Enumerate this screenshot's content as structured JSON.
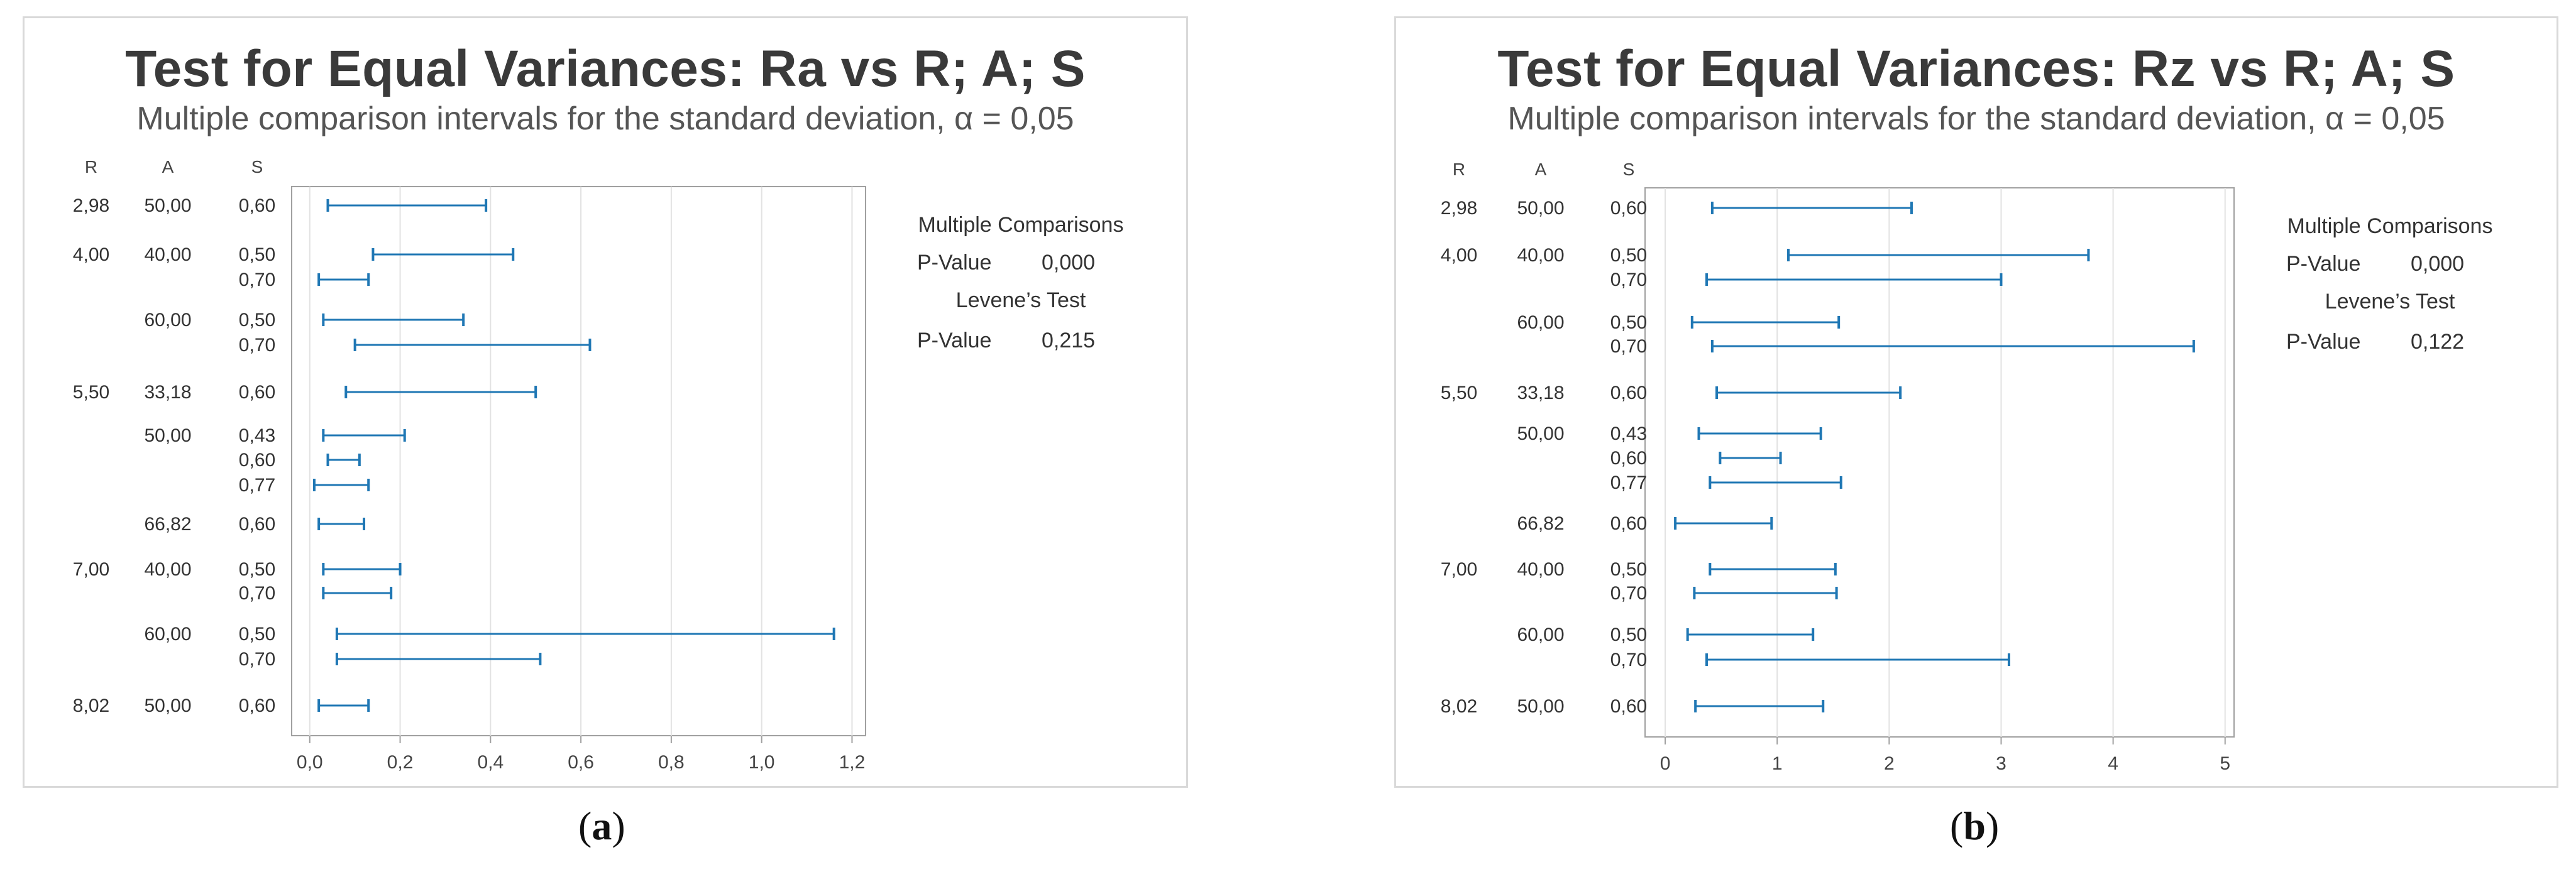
{
  "panels": [
    {
      "title": "Test for Equal Variances: Ra vs R; A; S",
      "subtitle": "Multiple comparison intervals for the standard deviation, α = 0,05",
      "caption_letter": "a",
      "stats": {
        "multiple_comparisons_heading": "Multiple Comparisons",
        "mc_pvalue_label": "P-Value",
        "mc_pvalue": "0,000",
        "levene_heading": "Levene’s Test",
        "lev_pvalue_label": "P-Value",
        "lev_pvalue": "0,215"
      }
    },
    {
      "title": "Test for Equal Variances: Rz vs R; A; S",
      "subtitle": "Multiple comparison intervals for the standard deviation, α = 0,05",
      "caption_letter": "b",
      "stats": {
        "multiple_comparisons_heading": "Multiple Comparisons",
        "mc_pvalue_label": "P-Value",
        "mc_pvalue": "0,000",
        "levene_heading": "Levene’s Test",
        "lev_pvalue_label": "P-Value",
        "lev_pvalue": "0,122"
      }
    }
  ],
  "chart_data": [
    {
      "type": "interval",
      "title": "Test for Equal Variances: Ra vs R; A; S",
      "subtitle": "Multiple comparison intervals for the standard deviation, α = 0,05",
      "column_headers": [
        "R",
        "A",
        "S"
      ],
      "rows": [
        {
          "R": "2,98",
          "A": "50,00",
          "S": "0,60",
          "low": 0.04,
          "high": 0.39
        },
        {
          "R": "4,00",
          "A": "40,00",
          "S": "0,50",
          "low": 0.14,
          "high": 0.45
        },
        {
          "R": "",
          "A": "",
          "S": "0,70",
          "low": 0.02,
          "high": 0.13
        },
        {
          "R": "",
          "A": "60,00",
          "S": "0,50",
          "low": 0.03,
          "high": 0.34
        },
        {
          "R": "",
          "A": "",
          "S": "0,70",
          "low": 0.1,
          "high": 0.62
        },
        {
          "R": "5,50",
          "A": "33,18",
          "S": "0,60",
          "low": 0.08,
          "high": 0.5
        },
        {
          "R": "",
          "A": "50,00",
          "S": "0,43",
          "low": 0.03,
          "high": 0.21
        },
        {
          "R": "",
          "A": "",
          "S": "0,60",
          "low": 0.04,
          "high": 0.11
        },
        {
          "R": "",
          "A": "",
          "S": "0,77",
          "low": 0.01,
          "high": 0.13
        },
        {
          "R": "",
          "A": "66,82",
          "S": "0,60",
          "low": 0.02,
          "high": 0.12
        },
        {
          "R": "7,00",
          "A": "40,00",
          "S": "0,50",
          "low": 0.03,
          "high": 0.2
        },
        {
          "R": "",
          "A": "",
          "S": "0,70",
          "low": 0.03,
          "high": 0.18
        },
        {
          "R": "",
          "A": "60,00",
          "S": "0,50",
          "low": 0.06,
          "high": 1.16
        },
        {
          "R": "",
          "A": "",
          "S": "0,70",
          "low": 0.06,
          "high": 0.51
        },
        {
          "R": "8,02",
          "A": "50,00",
          "S": "0,60",
          "low": 0.02,
          "high": 0.13
        }
      ],
      "x_ticks": [
        "0,0",
        "0,2",
        "0,4",
        "0,6",
        "0,8",
        "1,0",
        "1,2"
      ],
      "x_tick_values": [
        0,
        0.2,
        0.4,
        0.6,
        0.8,
        1.0,
        1.2
      ],
      "xlim": [
        -0.04,
        1.23
      ],
      "grid": true,
      "color": "#1f77b4"
    },
    {
      "type": "interval",
      "title": "Test for Equal Variances: Rz vs R; A; S",
      "subtitle": "Multiple comparison intervals for the standard deviation, α = 0,05",
      "column_headers": [
        "R",
        "A",
        "S"
      ],
      "rows": [
        {
          "R": "2,98",
          "A": "50,00",
          "S": "0,60",
          "low": 0.42,
          "high": 2.2
        },
        {
          "R": "4,00",
          "A": "40,00",
          "S": "0,50",
          "low": 1.1,
          "high": 3.78
        },
        {
          "R": "",
          "A": "",
          "S": "0,70",
          "low": 0.37,
          "high": 3.0
        },
        {
          "R": "",
          "A": "60,00",
          "S": "0,50",
          "low": 0.24,
          "high": 1.55
        },
        {
          "R": "",
          "A": "",
          "S": "0,70",
          "low": 0.42,
          "high": 4.72
        },
        {
          "R": "5,50",
          "A": "33,18",
          "S": "0,60",
          "low": 0.46,
          "high": 2.1
        },
        {
          "R": "",
          "A": "50,00",
          "S": "0,43",
          "low": 0.3,
          "high": 1.39
        },
        {
          "R": "",
          "A": "",
          "S": "0,60",
          "low": 0.49,
          "high": 1.03
        },
        {
          "R": "",
          "A": "",
          "S": "0,77",
          "low": 0.4,
          "high": 1.57
        },
        {
          "R": "",
          "A": "66,82",
          "S": "0,60",
          "low": 0.09,
          "high": 0.95
        },
        {
          "R": "7,00",
          "A": "40,00",
          "S": "0,50",
          "low": 0.4,
          "high": 1.52
        },
        {
          "R": "",
          "A": "",
          "S": "0,70",
          "low": 0.26,
          "high": 1.53
        },
        {
          "R": "",
          "A": "60,00",
          "S": "0,50",
          "low": 0.2,
          "high": 1.32
        },
        {
          "R": "",
          "A": "",
          "S": "0,70",
          "low": 0.37,
          "high": 3.07
        },
        {
          "R": "8,02",
          "A": "50,00",
          "S": "0,60",
          "low": 0.27,
          "high": 1.41
        }
      ],
      "x_ticks": [
        "0",
        "1",
        "2",
        "3",
        "4",
        "5"
      ],
      "x_tick_values": [
        0,
        1,
        2,
        3,
        4,
        5
      ],
      "xlim": [
        -0.18,
        5.08
      ],
      "grid": true,
      "color": "#1f77b4"
    }
  ]
}
